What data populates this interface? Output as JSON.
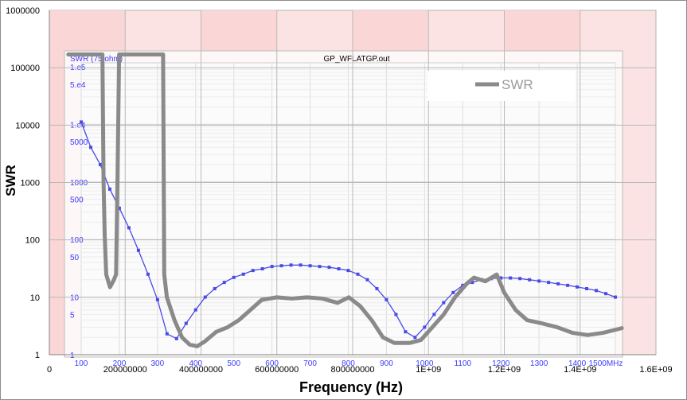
{
  "chart_data": {
    "type": "line",
    "xlabel": "Frequency (Hz)",
    "ylabel": "SWR",
    "x_scale": "linear",
    "y_scale": "log",
    "xlim": [
      0,
      1600000000
    ],
    "ylim": [
      1,
      1000000
    ],
    "x_tick_labels": [
      "0",
      "200000000",
      "400000000",
      "600000000",
      "800000000",
      "1E+09",
      "1.2E+09",
      "1.4E+09",
      "1.6E+09"
    ],
    "y_tick_labels": [
      "1",
      "10",
      "100",
      "1000",
      "10000",
      "100000",
      "1000000"
    ],
    "legend": {
      "position": "top-right",
      "entries": [
        "SWR"
      ]
    },
    "grid": true,
    "series": [
      {
        "name": "SWR",
        "color": "#8a8a8a",
        "points": [
          [
            50000000,
            170000
          ],
          [
            140000000,
            170000
          ],
          [
            143000000,
            1000
          ],
          [
            146000000,
            120
          ],
          [
            150000000,
            25
          ],
          [
            160000000,
            15
          ],
          [
            170000000,
            20
          ],
          [
            176000000,
            25
          ],
          [
            180000000,
            1500
          ],
          [
            184000000,
            170000
          ],
          [
            300000000,
            170000
          ],
          [
            303000000,
            25
          ],
          [
            310000000,
            10
          ],
          [
            330000000,
            4
          ],
          [
            350000000,
            2
          ],
          [
            370000000,
            1.5
          ],
          [
            390000000,
            1.4
          ],
          [
            410000000,
            1.7
          ],
          [
            440000000,
            2.5
          ],
          [
            470000000,
            3
          ],
          [
            500000000,
            4
          ],
          [
            530000000,
            6
          ],
          [
            560000000,
            9
          ],
          [
            600000000,
            10
          ],
          [
            640000000,
            9.5
          ],
          [
            680000000,
            10
          ],
          [
            720000000,
            9.5
          ],
          [
            760000000,
            8
          ],
          [
            790000000,
            10
          ],
          [
            820000000,
            7
          ],
          [
            850000000,
            4
          ],
          [
            880000000,
            2
          ],
          [
            910000000,
            1.6
          ],
          [
            950000000,
            1.6
          ],
          [
            980000000,
            1.8
          ],
          [
            1010000000,
            3
          ],
          [
            1040000000,
            5
          ],
          [
            1070000000,
            10
          ],
          [
            1100000000,
            17
          ],
          [
            1120000000,
            22
          ],
          [
            1150000000,
            19
          ],
          [
            1180000000,
            25
          ],
          [
            1200000000,
            12
          ],
          [
            1230000000,
            6
          ],
          [
            1260000000,
            4
          ],
          [
            1300000000,
            3.5
          ],
          [
            1340000000,
            3
          ],
          [
            1380000000,
            2.4
          ],
          [
            1420000000,
            2.2
          ],
          [
            1460000000,
            2.4
          ],
          [
            1510000000,
            2.9
          ]
        ]
      }
    ],
    "inset": {
      "title": "GP_WFLATGP.out",
      "y_axis_label": "SWR (75 ohm)",
      "x_unit": "MHz",
      "x_tick_labels": [
        "100",
        "200",
        "300",
        "400",
        "500",
        "600",
        "700",
        "800",
        "900",
        "1000",
        "1100",
        "1200",
        "1300",
        "1400",
        "1500MHz"
      ],
      "y_tick_labels": [
        "1.e5",
        "5.e4",
        "1.e4",
        "5000",
        "1000",
        "500",
        "100",
        "50",
        "10",
        "5",
        "1"
      ],
      "series": {
        "color": "#4a4ae8",
        "points": [
          [
            100,
            11000
          ],
          [
            125,
            4000
          ],
          [
            150,
            2000
          ],
          [
            175,
            750
          ],
          [
            200,
            350
          ],
          [
            225,
            160
          ],
          [
            250,
            65
          ],
          [
            275,
            25
          ],
          [
            300,
            9
          ],
          [
            325,
            2.3
          ],
          [
            350,
            1.9
          ],
          [
            375,
            3.5
          ],
          [
            400,
            6
          ],
          [
            425,
            10
          ],
          [
            450,
            14
          ],
          [
            475,
            18
          ],
          [
            500,
            22
          ],
          [
            525,
            25
          ],
          [
            550,
            29
          ],
          [
            575,
            31
          ],
          [
            600,
            34
          ],
          [
            625,
            35
          ],
          [
            650,
            36
          ],
          [
            675,
            36
          ],
          [
            700,
            35
          ],
          [
            725,
            34
          ],
          [
            750,
            33
          ],
          [
            775,
            31
          ],
          [
            800,
            29
          ],
          [
            825,
            25
          ],
          [
            850,
            20
          ],
          [
            875,
            14
          ],
          [
            900,
            9
          ],
          [
            925,
            5
          ],
          [
            950,
            2.5
          ],
          [
            975,
            2
          ],
          [
            1000,
            3
          ],
          [
            1025,
            5
          ],
          [
            1050,
            8
          ],
          [
            1075,
            12
          ],
          [
            1100,
            16
          ],
          [
            1125,
            18
          ],
          [
            1150,
            20
          ],
          [
            1175,
            21
          ],
          [
            1200,
            21.5
          ],
          [
            1225,
            21.5
          ],
          [
            1250,
            21
          ],
          [
            1275,
            20
          ],
          [
            1300,
            19
          ],
          [
            1325,
            18
          ],
          [
            1350,
            17
          ],
          [
            1375,
            16
          ],
          [
            1400,
            15
          ],
          [
            1425,
            14
          ],
          [
            1450,
            13
          ],
          [
            1475,
            11.5
          ],
          [
            1500,
            10
          ]
        ]
      }
    }
  }
}
